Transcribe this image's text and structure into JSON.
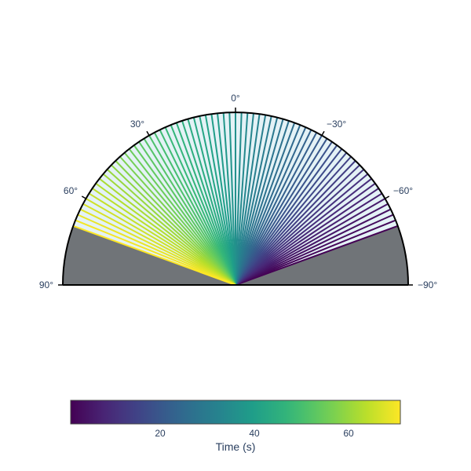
{
  "chart_data": {
    "type": "polar-sector-lines",
    "angular_axis": {
      "direction": "clockwise",
      "rotation_deg": 90,
      "range_deg": [
        -90,
        90
      ],
      "tick_values": [
        90,
        60,
        30,
        0,
        -30,
        -60,
        -90
      ],
      "tick_labels": [
        "90°",
        "60°",
        "30°",
        "0°",
        "−30°",
        "−60°",
        "−90°"
      ]
    },
    "masked_regions": [
      {
        "theta_from": 70,
        "theta_to": 90,
        "color": "#707478"
      },
      {
        "theta_from": -90,
        "theta_to": -70,
        "color": "#707478"
      }
    ],
    "lines": {
      "theta_start": -70,
      "theta_end": 70,
      "count": 71,
      "time_start": 1,
      "time_end": 71,
      "fill": "#e4f2f6"
    },
    "colorbar": {
      "title": "Time (s)",
      "range": [
        1,
        71
      ],
      "tick_values": [
        20,
        40,
        60
      ],
      "tick_labels": [
        "20",
        "40",
        "60"
      ],
      "colorscale": "Viridis"
    }
  }
}
